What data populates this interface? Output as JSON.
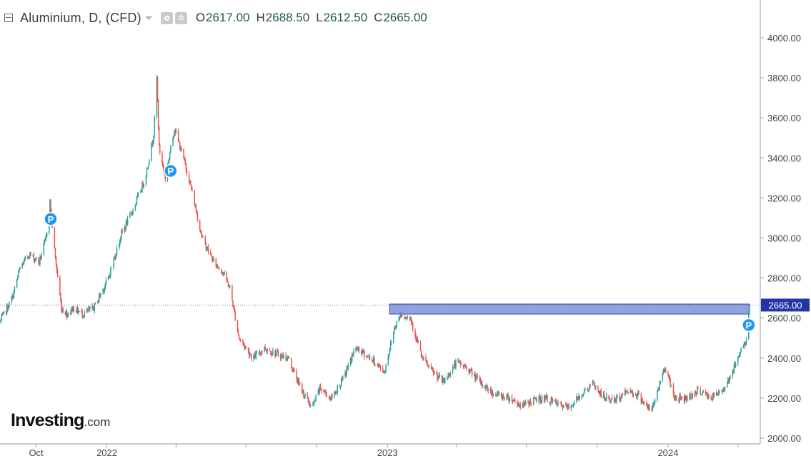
{
  "header": {
    "title": "Aluminium, D, (CFD)",
    "open_label": "O",
    "open": "2617.00",
    "high_label": "H",
    "high": "2688.50",
    "low_label": "L",
    "low": "2612.50",
    "close_label": "C",
    "close": "2665.00",
    "icons": [
      "collapse-icon",
      "dropdown-caret-icon",
      "visibility-icon",
      "settings-gear-icon"
    ]
  },
  "logo": {
    "brand": "Investing",
    "domain": ".com"
  },
  "colors": {
    "up": "#26a69a",
    "down": "#ef5350",
    "neutral": "#444444",
    "price_line": "#2b3fc0",
    "zone_fill": "#7e92d6",
    "zone_stroke": "#3448b0",
    "price_tag_bg": "#2336a8",
    "marker": "#2196f3"
  },
  "chart_data": {
    "type": "candlestick",
    "y_axis": {
      "ticks": [
        4000,
        3800,
        3600,
        3400,
        3200,
        3000,
        2800,
        2600,
        2400,
        2200,
        2000
      ],
      "tick_labels": [
        "4000.00",
        "3800.00",
        "3600.00",
        "3400.00",
        "3200.00",
        "3000.00",
        "2800.00",
        "2600.00",
        "2400.00",
        "2200.00",
        "2000.00"
      ],
      "range": [
        1995,
        4200
      ]
    },
    "x_axis": {
      "labels": [
        "Oct",
        "2022",
        "2023",
        "2024"
      ],
      "label_dates": [
        "2021-10-01",
        "2022-01-01",
        "2023-01-01",
        "2024-01-01"
      ],
      "range": [
        "2021-08-15",
        "2024-04-30"
      ]
    },
    "current_price": 2665.0,
    "current_price_label": "2665.00",
    "resistance_zone": {
      "from_date": "2023-01-04",
      "to_date": "2024-04-16",
      "low": 2620,
      "high": 2670
    },
    "pivot_markers": [
      {
        "label": "P",
        "date": "2021-10-20",
        "price": 3095
      },
      {
        "label": "P",
        "date": "2022-03-25",
        "price": 3335
      },
      {
        "label": "P",
        "date": "2024-04-15",
        "price": 2565
      }
    ],
    "price_path": [
      [
        "2021-08-15",
        2580
      ],
      [
        "2021-08-31",
        2700
      ],
      [
        "2021-09-10",
        2850
      ],
      [
        "2021-09-22",
        2920
      ],
      [
        "2021-10-05",
        2880
      ],
      [
        "2021-10-14",
        3000
      ],
      [
        "2021-10-19",
        3180
      ],
      [
        "2021-10-26",
        2900
      ],
      [
        "2021-11-03",
        2650
      ],
      [
        "2021-11-10",
        2620
      ],
      [
        "2021-11-18",
        2650
      ],
      [
        "2021-12-01",
        2620
      ],
      [
        "2021-12-15",
        2650
      ],
      [
        "2022-01-03",
        2800
      ],
      [
        "2022-01-20",
        3020
      ],
      [
        "2022-02-05",
        3150
      ],
      [
        "2022-02-20",
        3300
      ],
      [
        "2022-03-03",
        3520
      ],
      [
        "2022-03-07",
        3800
      ],
      [
        "2022-03-10",
        3450
      ],
      [
        "2022-03-18",
        3300
      ],
      [
        "2022-03-30",
        3550
      ],
      [
        "2022-04-12",
        3380
      ],
      [
        "2022-04-20",
        3260
      ],
      [
        "2022-05-05",
        3000
      ],
      [
        "2022-05-20",
        2880
      ],
      [
        "2022-06-01",
        2830
      ],
      [
        "2022-06-10",
        2750
      ],
      [
        "2022-06-22",
        2500
      ],
      [
        "2022-07-10",
        2400
      ],
      [
        "2022-07-25",
        2450
      ],
      [
        "2022-08-10",
        2420
      ],
      [
        "2022-08-25",
        2400
      ],
      [
        "2022-09-10",
        2250
      ],
      [
        "2022-09-25",
        2150
      ],
      [
        "2022-10-05",
        2250
      ],
      [
        "2022-10-20",
        2200
      ],
      [
        "2022-11-05",
        2300
      ],
      [
        "2022-11-20",
        2450
      ],
      [
        "2022-12-10",
        2400
      ],
      [
        "2022-12-28",
        2330
      ],
      [
        "2023-01-10",
        2550
      ],
      [
        "2023-01-18",
        2620
      ],
      [
        "2023-01-31",
        2600
      ],
      [
        "2023-02-15",
        2400
      ],
      [
        "2023-03-01",
        2330
      ],
      [
        "2023-03-15",
        2280
      ],
      [
        "2023-04-01",
        2380
      ],
      [
        "2023-04-15",
        2350
      ],
      [
        "2023-05-01",
        2280
      ],
      [
        "2023-05-20",
        2220
      ],
      [
        "2023-06-10",
        2200
      ],
      [
        "2023-06-25",
        2160
      ],
      [
        "2023-07-10",
        2190
      ],
      [
        "2023-07-25",
        2200
      ],
      [
        "2023-08-10",
        2170
      ],
      [
        "2023-08-25",
        2150
      ],
      [
        "2023-09-10",
        2220
      ],
      [
        "2023-09-25",
        2270
      ],
      [
        "2023-10-10",
        2200
      ],
      [
        "2023-10-25",
        2190
      ],
      [
        "2023-11-10",
        2240
      ],
      [
        "2023-11-25",
        2210
      ],
      [
        "2023-12-10",
        2130
      ],
      [
        "2023-12-28",
        2360
      ],
      [
        "2024-01-10",
        2200
      ],
      [
        "2024-01-25",
        2200
      ],
      [
        "2024-02-10",
        2240
      ],
      [
        "2024-02-25",
        2200
      ],
      [
        "2024-03-10",
        2230
      ],
      [
        "2024-03-25",
        2330
      ],
      [
        "2024-04-05",
        2450
      ],
      [
        "2024-04-12",
        2480
      ],
      [
        "2024-04-16",
        2665
      ]
    ]
  }
}
